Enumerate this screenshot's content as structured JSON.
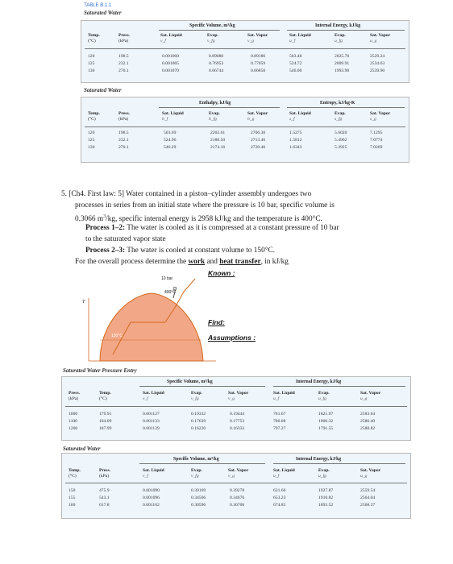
{
  "table1": {
    "tag": "TABLE B.1.1",
    "title": "Saturated Water",
    "group_left": "Specific Volume, m³/kg",
    "group_right": "Internal Energy, kJ/kg",
    "col1": "Temp.",
    "col1u": "(°C)",
    "col2": "Press.",
    "col2u": "(kPa)",
    "c3": "Sat. Liquid",
    "c3s": "v_f",
    "c4": "Evap.",
    "c4s": "v_fg",
    "c5": "Sat. Vapor",
    "c5s": "v_g",
    "c6": "Sat. Liquid",
    "c6s": "u_f",
    "c7": "Evap.",
    "c7s": "u_fg",
    "c8": "Sat. Vapor",
    "c8s": "u_g",
    "rows": [
      [
        "120",
        "198.5",
        "0.001060",
        "0.89080",
        "0.89186",
        "503.48",
        "2025.76",
        "2529.24"
      ],
      [
        "125",
        "232.1",
        "0.001065",
        "0.76953",
        "0.77059",
        "524.72",
        "2009.91",
        "2534.63"
      ],
      [
        "130",
        "270.1",
        "0.001070",
        "0.66744",
        "0.66850",
        "546.00",
        "1993.90",
        "2539.90"
      ]
    ]
  },
  "table2": {
    "title": "Saturated Water",
    "group_left": "Enthalpy, kJ/kg",
    "group_right": "Entropy, kJ/kg-K",
    "col1": "Temp.",
    "col1u": "(°C)",
    "col2": "Press.",
    "col2u": "(kPa)",
    "c3": "Sat. Liquid",
    "c3s": "h_f",
    "c4": "Evap.",
    "c4s": "h_fg",
    "c5": "Sat. Vapor",
    "c5s": "h_g",
    "c6": "Sat. Liquid",
    "c6s": "s_f",
    "c7": "Evap.",
    "c7s": "s_fg",
    "c8": "Sat. Vapor",
    "c8s": "s_g",
    "rows": [
      [
        "120",
        "198.5",
        "503.69",
        "2202.61",
        "2706.30",
        "1.5275",
        "5.6020",
        "7.1295"
      ],
      [
        "125",
        "232.1",
        "524.96",
        "2188.50",
        "2713.46",
        "1.5812",
        "5.4962",
        "7.0774"
      ],
      [
        "130",
        "270.1",
        "546.29",
        "2174.16",
        "2720.46",
        "1.6343",
        "5.3925",
        "7.0269"
      ]
    ]
  },
  "problem": {
    "line1": "5.  [Ch4. First law: 5] Water contained in a piston–cylinder assembly undergoes two",
    "line2": "processes in series from an initial state where the pressure is 10 bar, specific volume is",
    "line3a": "0.3066 m",
    "line3sup": "3",
    "line3b": "/kg, specific internal energy is 2958 kJ/kg and the temperature is 400°C.",
    "p1_label": "Process 1–2:",
    "p1_text": " The water is cooled as it is compressed at a constant pressure of 10 bar",
    "p1_cont": "to the saturated vapor state",
    "p2_label": "Process 2–3:",
    "p2_text": " The water is cooled at constant volume to 150°C.",
    "last_a": "For the overall process determine the ",
    "last_work": "work",
    "last_and": " and ",
    "last_heat": "heat transfer",
    "last_b": ", in kJ/kg"
  },
  "diagram": {
    "p_label": "10 bar",
    "t_label": "400°C",
    "isotherm_label": "150°C",
    "axis_label": "T",
    "dome_color": "#f2a887",
    "line_color": "#d2691e"
  },
  "labels": {
    "known": "Known :",
    "find": "Find:",
    "assumptions": "Assumptions :"
  },
  "table3": {
    "title": "Saturated Water Pressure Entry",
    "group_left": "Specific Volume, m³/kg",
    "group_right": "Internal Energy, kJ/kg",
    "col1": "Press.",
    "col1u": "(kPa)",
    "col2": "Temp.",
    "col2u": "(°C)",
    "c3": "Sat. Liquid",
    "c3s": "v_f",
    "c4": "Evap.",
    "c4s": "v_fg",
    "c5": "Sat. Vapor",
    "c5s": "v_g",
    "c6": "Sat. Liquid",
    "c6s": "u_f",
    "c7": "Evap.",
    "c7s": "u_fg",
    "c8": "Sat. Vapor",
    "c8s": "u_g",
    "rows": [
      [
        "1000",
        "179.91",
        "0.001127",
        "0.19332",
        "0.19444",
        "761.67",
        "1821.97",
        "2583.64"
      ],
      [
        "1100",
        "184.09",
        "0.001133",
        "0.17639",
        "0.17753",
        "780.08",
        "1806.32",
        "2586.40"
      ],
      [
        "1200",
        "187.99",
        "0.001139",
        "0.16220",
        "0.16333",
        "797.27",
        "1791.55",
        "2588.82"
      ]
    ]
  },
  "table4": {
    "title": "Saturated Water",
    "group_left": "Specific Volume, m³/kg",
    "group_right": "Internal Energy, kJ/kg",
    "col1": "Temp.",
    "col1u": "(°C)",
    "col2": "Press.",
    "col2u": "(kPa)",
    "c3": "Sat. Liquid",
    "c3s": "v_f",
    "c4": "Evap.",
    "c4s": "v_fg",
    "c5": "Sat. Vapor",
    "c5s": "v_g",
    "c6": "Sat. Liquid",
    "c6s": "u_f",
    "c7": "Evap.",
    "c7s": "u_fg",
    "c8": "Sat. Vapor",
    "c8s": "u_g",
    "rows": [
      [
        "150",
        "475.9",
        "0.001090",
        "0.39169",
        "0.39278",
        "631.66",
        "1927.87",
        "2559.54"
      ],
      [
        "155",
        "543.1",
        "0.001096",
        "0.34566",
        "0.34676",
        "653.23",
        "1910.82",
        "2564.04"
      ],
      [
        "160",
        "617.8",
        "0.001102",
        "0.30596",
        "0.30706",
        "674.85",
        "1893.52",
        "2568.37"
      ]
    ]
  }
}
